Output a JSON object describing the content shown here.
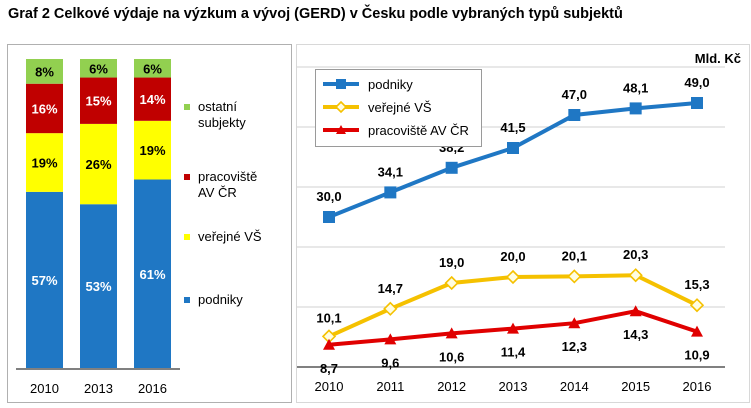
{
  "title": "Graf 2 Celkové výdaje na výzkum a vývoj (GERD) v Česku podle vybraných typů subjektů",
  "colors": {
    "podniky": "#1f77c4",
    "verejne_vs": "#ffff00",
    "pracoviste_av": "#c00000",
    "ostatni": "#92d050",
    "line_podniky": "#1f77c4",
    "line_verejne_vs": "#f5c100",
    "line_pracoviste_av": "#e00000"
  },
  "chart_data": [
    {
      "type": "bar",
      "stacked": true,
      "percent": true,
      "categories": [
        "2010",
        "2013",
        "2016"
      ],
      "series": [
        {
          "name": "podniky",
          "values": [
            57,
            53,
            61
          ],
          "labels": [
            "57%",
            "53%",
            "61%"
          ]
        },
        {
          "name": "veřejné VŠ",
          "values": [
            19,
            26,
            19
          ],
          "labels": [
            "19%",
            "26%",
            "19%"
          ]
        },
        {
          "name": "pracoviště\nAV ČR",
          "values": [
            16,
            15,
            14
          ],
          "labels": [
            "16%",
            "15%",
            "14%"
          ]
        },
        {
          "name": "ostatní\nsubjekty",
          "values": [
            8,
            6,
            6
          ],
          "labels": [
            "8%",
            "6%",
            "6%"
          ]
        }
      ],
      "legend_position": "right"
    },
    {
      "type": "line",
      "unit_label": "Mld. Kč",
      "x": [
        "2010",
        "2011",
        "2012",
        "2013",
        "2014",
        "2015",
        "2016"
      ],
      "ylim": [
        5,
        55
      ],
      "grid": true,
      "legend_position": "top-left",
      "series": [
        {
          "name": "podniky",
          "values": [
            30.0,
            34.1,
            38.2,
            41.5,
            47.0,
            48.1,
            49.0
          ],
          "labels": [
            "30,0",
            "34,1",
            "38,2",
            "41,5",
            "47,0",
            "48,1",
            "49,0"
          ],
          "marker": "square"
        },
        {
          "name": "veřejné VŠ",
          "values": [
            10.1,
            14.7,
            19.0,
            20.0,
            20.1,
            20.3,
            15.3
          ],
          "labels": [
            "10,1",
            "14,7",
            "19,0",
            "20,0",
            "20,1",
            "20,3",
            "15,3"
          ],
          "marker": "diamond"
        },
        {
          "name": "pracoviště AV ČR",
          "values": [
            8.7,
            9.6,
            10.6,
            11.4,
            12.3,
            14.3,
            10.9
          ],
          "labels": [
            "8,7",
            "9,6",
            "10,6",
            "11,4",
            "12,3",
            "14,3",
            "10,9"
          ],
          "marker": "triangle"
        }
      ]
    }
  ]
}
